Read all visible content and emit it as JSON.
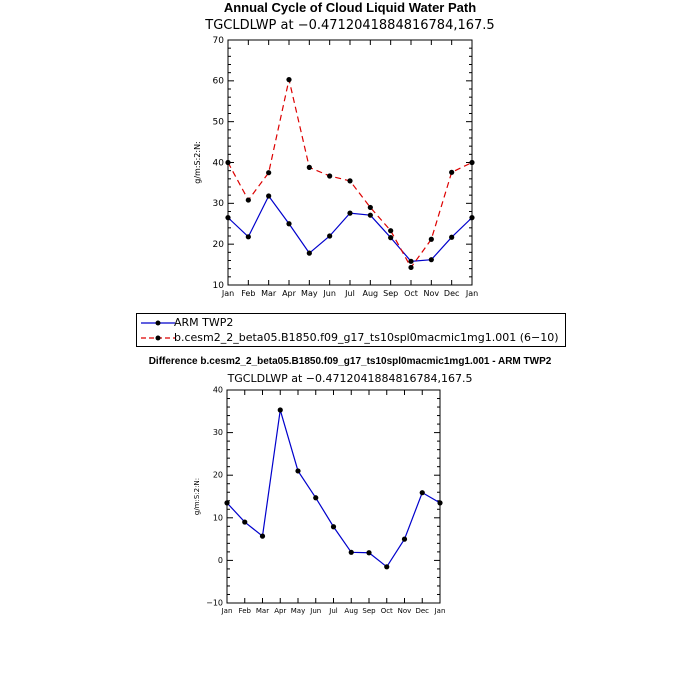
{
  "page": {
    "title1": "Annual Cycle of Cloud Liquid Water Path",
    "subtitle1": "TGCLDLWP at −0.4712041884816784,167.5",
    "title2": "Difference b.cesm2_2_beta05.B1850.f09_g17_ts10spl0macmic1mg1.001 - ARM TWP2",
    "subtitle2": "TGCLDLWP at −0.4712041884816784,167.5",
    "ylabel": "g/m:S:2:N:"
  },
  "legend": {
    "items": [
      {
        "label": "ARM TWP2",
        "color": "#0000CC",
        "dash": "solid"
      },
      {
        "label": "b.cesm2_2_beta05.B1850.f09_g17_ts10spl0macmic1mg1.001 (6−10)",
        "color": "#DD0000",
        "dash": "dashed"
      }
    ]
  },
  "chart_data": [
    {
      "type": "line",
      "title": "Annual Cycle of Cloud Liquid Water Path",
      "subtitle": "TGCLDLWP at −0.4712041884816784,167.5",
      "ylabel": "g/m:S:2:N:",
      "categories": [
        "Jan",
        "Feb",
        "Mar",
        "Apr",
        "May",
        "Jun",
        "Jul",
        "Aug",
        "Sep",
        "Oct",
        "Nov",
        "Dec",
        "Jan"
      ],
      "ylim": [
        10,
        70
      ],
      "yticks": [
        10,
        20,
        30,
        40,
        50,
        60,
        70
      ],
      "series": [
        {
          "name": "ARM TWP2",
          "color": "#0000CC",
          "dash": "solid",
          "values": [
            26.5,
            21.8,
            31.8,
            25.0,
            17.8,
            22.0,
            27.6,
            27.1,
            21.6,
            15.8,
            16.2,
            21.7,
            26.5
          ]
        },
        {
          "name": "b.cesm2_2_beta05.B1850.f09_g17_ts10spl0macmic1mg1.001 (6−10)",
          "color": "#DD0000",
          "dash": "dashed",
          "values": [
            40.0,
            30.8,
            37.5,
            60.3,
            38.8,
            36.7,
            35.5,
            29.0,
            23.3,
            14.3,
            21.2,
            37.6,
            40.0
          ]
        }
      ]
    },
    {
      "type": "line",
      "title": "Difference b.cesm2_2_beta05.B1850.f09_g17_ts10spl0macmic1mg1.001 - ARM TWP2",
      "subtitle": "TGCLDLWP at −0.4712041884816784,167.5",
      "ylabel": "g/m:S:2:N:",
      "categories": [
        "Jan",
        "Feb",
        "Mar",
        "Apr",
        "May",
        "Jun",
        "Jul",
        "Aug",
        "Sep",
        "Oct",
        "Nov",
        "Dec",
        "Jan"
      ],
      "ylim": [
        -10,
        40
      ],
      "yticks": [
        -10,
        0,
        10,
        20,
        30,
        40
      ],
      "series": [
        {
          "color": "#0000CC",
          "dash": "solid",
          "values": [
            13.5,
            9.0,
            5.7,
            35.3,
            21.0,
            14.7,
            7.9,
            1.9,
            1.8,
            -1.5,
            5.0,
            15.9,
            13.5
          ]
        }
      ]
    }
  ]
}
